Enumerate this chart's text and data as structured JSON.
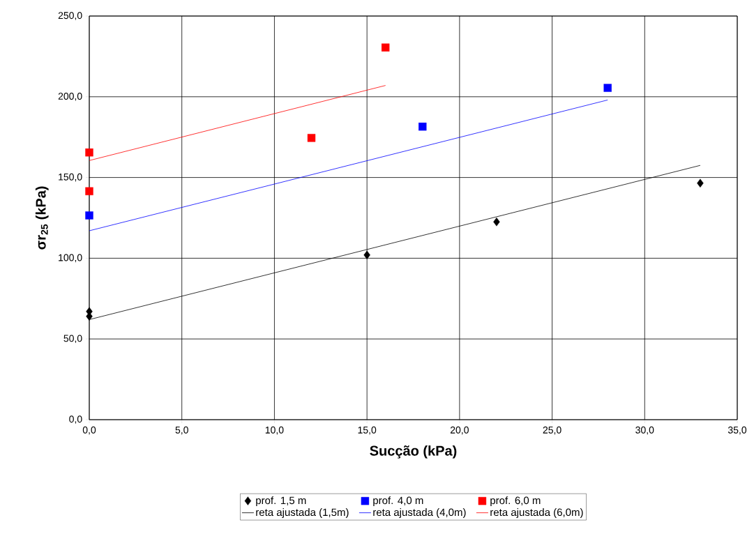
{
  "chart_data": {
    "type": "scatter",
    "xlabel": "Sucção (kPa)",
    "ylabel": "σr$_{25}$ (kPa)",
    "xlim": [
      0,
      35
    ],
    "ylim": [
      0,
      250
    ],
    "xticks": [
      {
        "value": 0,
        "label": "0,0"
      },
      {
        "value": 5,
        "label": "5,0"
      },
      {
        "value": 10,
        "label": "10,0"
      },
      {
        "value": 15,
        "label": "15,0"
      },
      {
        "value": 20,
        "label": "20,0"
      },
      {
        "value": 25,
        "label": "25,0"
      },
      {
        "value": 30,
        "label": "30,0"
      },
      {
        "value": 35,
        "label": "35,0"
      }
    ],
    "yticks": [
      {
        "value": 0,
        "label": "0,0"
      },
      {
        "value": 50,
        "label": "50,0"
      },
      {
        "value": 100,
        "label": "100,0"
      },
      {
        "value": 150,
        "label": "150,0"
      },
      {
        "value": 200,
        "label": "200,0"
      },
      {
        "value": 250,
        "label": "250,0"
      }
    ],
    "grid": true,
    "legend": "bottom",
    "series": [
      {
        "name": "prof. 1,5 m",
        "marker": "diamond",
        "color": "#000000",
        "x": [
          0,
          0,
          15,
          22,
          33
        ],
        "values": [
          64,
          67,
          102,
          122.5,
          146.5
        ]
      },
      {
        "name": "prof. 4,0 m",
        "marker": "square",
        "color": "#0000ff",
        "x": [
          0,
          18,
          28
        ],
        "values": [
          126.5,
          181.5,
          205.5
        ]
      },
      {
        "name": "prof. 6,0 m",
        "marker": "square",
        "color": "#ff0000",
        "x": [
          0,
          0,
          12,
          16
        ],
        "values": [
          141.5,
          165.5,
          174.5,
          230.5
        ]
      },
      {
        "name": "reta ajustada (1,5m)",
        "type": "line",
        "marker": "none",
        "color": "#000000",
        "x": [
          0,
          33
        ],
        "values": [
          62,
          157.5
        ]
      },
      {
        "name": "reta ajustada (4,0m)",
        "type": "line",
        "marker": "none",
        "color": "#0000ff",
        "x": [
          0,
          28
        ],
        "values": [
          117,
          198
        ]
      },
      {
        "name": "reta ajustada (6,0m)",
        "type": "line",
        "marker": "none",
        "color": "#ff0000",
        "x": [
          0,
          16
        ],
        "values": [
          160.5,
          207
        ]
      }
    ]
  }
}
